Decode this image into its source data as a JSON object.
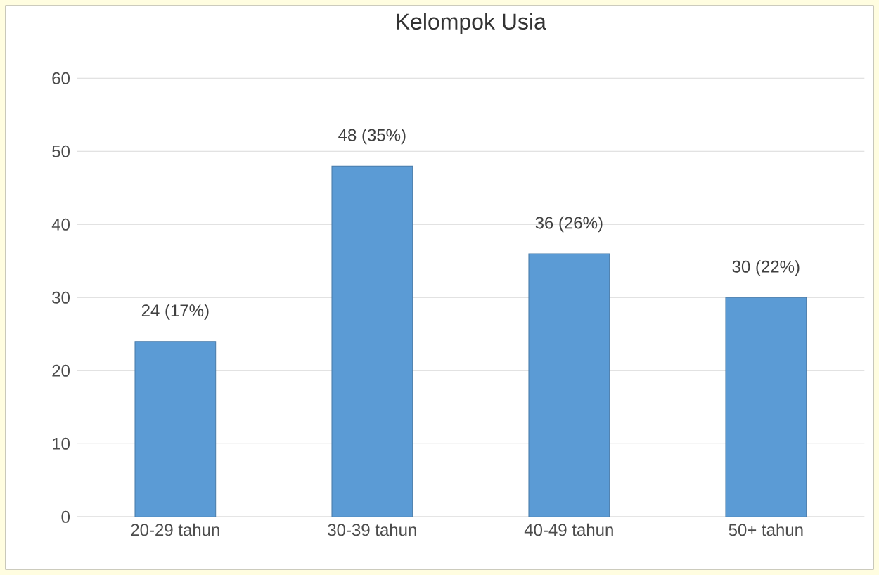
{
  "chart_data": {
    "type": "bar",
    "title": "Kelompok Usia",
    "categories": [
      "20-29 tahun",
      "30-39 tahun",
      "40-49 tahun",
      "50+ tahun"
    ],
    "values": [
      24,
      48,
      36,
      30
    ],
    "value_labels": [
      "24 (17%)",
      "48 (35%)",
      "36 (26%)",
      "30 (22%)"
    ],
    "color": "#5b9bd5",
    "ylim": [
      0,
      60
    ],
    "yticks": [
      0,
      10,
      20,
      30,
      40,
      50,
      60
    ],
    "grid": "y"
  }
}
